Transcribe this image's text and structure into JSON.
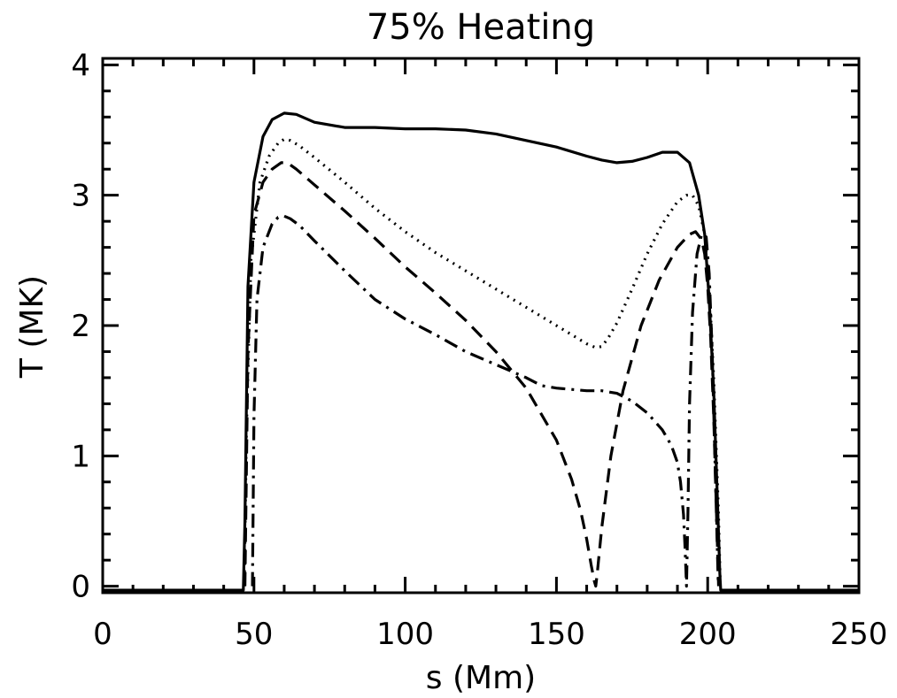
{
  "chart_data": {
    "type": "line",
    "title": "75% Heating",
    "xlabel": "s (Mm)",
    "ylabel": "T (MK)",
    "xlim": [
      0,
      250
    ],
    "ylim": [
      -0.05,
      4.05
    ],
    "xticks": [
      "0",
      "50",
      "100",
      "150",
      "200",
      "250"
    ],
    "yticks": [
      "0",
      "1",
      "2",
      "3",
      "4"
    ],
    "grid": false,
    "legend": "none",
    "series": [
      {
        "style": "solid",
        "x": [
          0,
          46.5,
          47,
          48,
          50,
          53,
          56,
          60,
          64,
          70,
          80,
          90,
          100,
          110,
          120,
          130,
          140,
          150,
          160,
          165,
          170,
          175,
          180,
          185,
          190,
          194,
          197,
          199,
          200.5,
          202,
          203.3,
          204,
          204.3,
          250
        ],
        "y": [
          -0.03,
          -0.03,
          0.5,
          2.3,
          3.1,
          3.45,
          3.58,
          3.63,
          3.62,
          3.56,
          3.52,
          3.52,
          3.51,
          3.51,
          3.5,
          3.47,
          3.42,
          3.37,
          3.3,
          3.27,
          3.25,
          3.26,
          3.29,
          3.33,
          3.33,
          3.25,
          3.0,
          2.7,
          2.2,
          1.5,
          0.6,
          0.1,
          -0.03,
          -0.03
        ]
      },
      {
        "style": "dotted",
        "x": [
          46.8,
          47.5,
          49,
          52,
          55,
          58,
          60,
          62,
          65,
          70,
          80,
          90,
          100,
          110,
          120,
          130,
          140,
          150,
          155,
          160,
          163,
          165,
          167,
          170,
          175,
          180,
          185,
          190,
          193,
          195,
          197,
          199,
          200.5,
          202,
          203.5,
          204.2
        ],
        "y": [
          0,
          1.2,
          2.5,
          3.1,
          3.3,
          3.4,
          3.43,
          3.42,
          3.38,
          3.29,
          3.1,
          2.9,
          2.72,
          2.56,
          2.42,
          2.28,
          2.14,
          2.0,
          1.93,
          1.86,
          1.83,
          1.84,
          1.9,
          2.02,
          2.28,
          2.55,
          2.78,
          2.95,
          3.0,
          3.0,
          2.92,
          2.7,
          2.3,
          1.6,
          0.6,
          0
        ]
      },
      {
        "style": "dashed",
        "x": [
          47,
          48,
          50,
          53,
          56,
          59,
          61,
          64,
          70,
          80,
          90,
          100,
          110,
          120,
          130,
          140,
          150,
          155,
          158,
          160,
          161.5,
          162.5,
          163,
          163.5,
          165,
          168,
          172,
          178,
          184,
          190,
          194,
          196,
          198,
          199,
          200,
          201,
          202,
          203,
          203.6
        ],
        "y": [
          0,
          1.8,
          2.85,
          3.1,
          3.2,
          3.25,
          3.25,
          3.2,
          3.08,
          2.88,
          2.67,
          2.45,
          2.25,
          2.04,
          1.8,
          1.52,
          1.12,
          0.82,
          0.58,
          0.36,
          0.16,
          0.04,
          0,
          0.1,
          0.45,
          1.0,
          1.5,
          2.0,
          2.35,
          2.6,
          2.7,
          2.72,
          2.66,
          2.55,
          2.3,
          1.9,
          1.3,
          0.5,
          0
        ]
      },
      {
        "style": "dashdot",
        "x": [
          49.5,
          50,
          51,
          53,
          56,
          58,
          60,
          62,
          65,
          70,
          80,
          90,
          100,
          110,
          120,
          130,
          140,
          145,
          150,
          155,
          160,
          165,
          170,
          175,
          180,
          185,
          188,
          190,
          191,
          192,
          192.5,
          193,
          193.5,
          194,
          195,
          196.5,
          198,
          199.5,
          200.5,
          201.5,
          202.5,
          203.5
        ],
        "y": [
          0,
          1.3,
          2.2,
          2.6,
          2.78,
          2.83,
          2.84,
          2.82,
          2.77,
          2.65,
          2.42,
          2.2,
          2.05,
          1.93,
          1.8,
          1.7,
          1.6,
          1.54,
          1.52,
          1.51,
          1.5,
          1.5,
          1.48,
          1.42,
          1.33,
          1.2,
          1.08,
          0.95,
          0.8,
          0.55,
          0.3,
          0,
          0.6,
          1.4,
          2.1,
          2.55,
          2.7,
          2.68,
          2.4,
          1.8,
          0.9,
          0
        ]
      }
    ]
  }
}
